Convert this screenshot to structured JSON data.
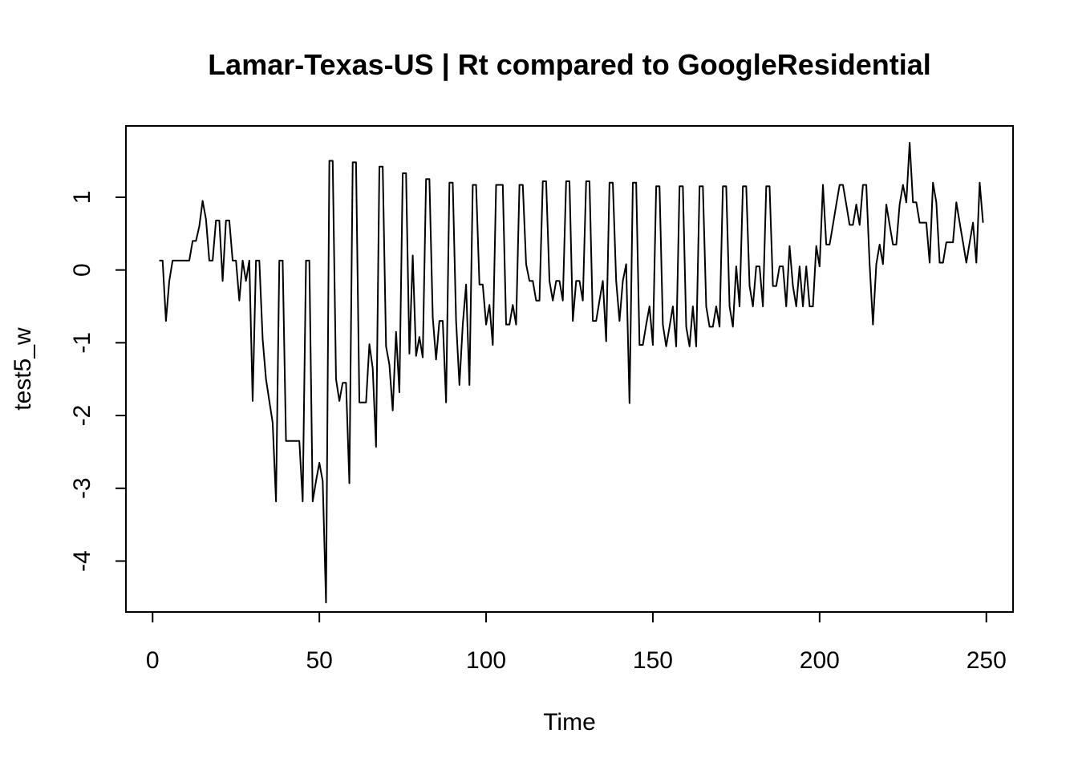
{
  "chart_data": {
    "type": "line",
    "title": "Lamar-Texas-US | Rt compared to GoogleResidential",
    "xlabel": "Time",
    "ylabel": "test5_w",
    "xlim": [
      -8,
      258
    ],
    "ylim": [
      -4.7,
      1.98
    ],
    "xticks": [
      0,
      50,
      100,
      150,
      200,
      250
    ],
    "yticks": [
      -4,
      -3,
      -2,
      -1,
      0,
      1
    ],
    "grid": false,
    "legend": "none",
    "line_color": "#000000",
    "series": [
      {
        "x_start": 2,
        "values": [
          0.13,
          0.13,
          -0.7,
          -0.15,
          0.13,
          0.13,
          0.13,
          0.13,
          0.13,
          0.13,
          0.4,
          0.4,
          0.6,
          0.95,
          0.7,
          0.13,
          0.13,
          0.68,
          0.68,
          -0.15,
          0.68,
          0.68,
          0.13,
          0.13,
          -0.42,
          0.13,
          -0.15,
          0.13,
          -1.8,
          0.13,
          0.13,
          -0.95,
          -1.5,
          -1.8,
          -2.1,
          -3.18,
          0.13,
          0.13,
          -2.35,
          -2.35,
          -2.35,
          -2.35,
          -2.35,
          -3.18,
          0.13,
          0.13,
          -3.18,
          -2.9,
          -2.65,
          -2.9,
          -4.57,
          1.5,
          1.5,
          -1.5,
          -1.8,
          -1.55,
          -1.55,
          -2.93,
          1.48,
          1.48,
          -1.82,
          -1.82,
          -1.82,
          -1.02,
          -1.35,
          -2.43,
          1.42,
          1.42,
          -1.05,
          -1.3,
          -1.93,
          -0.85,
          -1.68,
          1.33,
          1.33,
          -1.15,
          0.2,
          -1.18,
          -0.92,
          -1.2,
          1.25,
          1.25,
          -0.65,
          -1.23,
          -0.7,
          -0.7,
          -1.82,
          1.2,
          1.2,
          -0.7,
          -1.58,
          -0.75,
          -0.2,
          -1.58,
          1.17,
          1.17,
          -0.2,
          -0.2,
          -0.75,
          -0.48,
          -1.03,
          1.17,
          1.17,
          1.17,
          -0.75,
          -0.75,
          -0.48,
          -0.75,
          1.17,
          1.17,
          0.08,
          -0.15,
          -0.15,
          -0.42,
          -0.42,
          1.22,
          1.22,
          -0.15,
          -0.42,
          -0.15,
          -0.15,
          -0.42,
          1.22,
          1.22,
          -0.7,
          -0.15,
          -0.15,
          -0.42,
          1.22,
          1.22,
          -0.7,
          -0.7,
          -0.42,
          -0.15,
          -0.98,
          1.2,
          1.2,
          -0.15,
          -0.7,
          -0.15,
          0.08,
          -1.83,
          1.2,
          1.2,
          -1.03,
          -1.03,
          -0.75,
          -0.5,
          -1.03,
          1.15,
          1.15,
          -0.75,
          -1.05,
          -0.78,
          -0.5,
          -1.05,
          1.15,
          1.15,
          -0.78,
          -1.05,
          -0.5,
          -1.05,
          1.15,
          1.15,
          -0.5,
          -0.78,
          -0.78,
          -0.5,
          -0.78,
          1.15,
          1.15,
          -0.5,
          -0.78,
          0.05,
          -0.5,
          1.15,
          1.15,
          -0.22,
          -0.5,
          0.05,
          0.05,
          -0.5,
          1.15,
          1.15,
          -0.22,
          -0.22,
          0.05,
          0.05,
          -0.5,
          0.33,
          -0.22,
          -0.5,
          0.05,
          -0.5,
          0.05,
          -0.5,
          -0.5,
          0.33,
          0.05,
          1.17,
          0.35,
          0.35,
          0.62,
          0.9,
          1.17,
          1.17,
          0.9,
          0.62,
          0.62,
          0.9,
          0.62,
          1.17,
          1.17,
          0.08,
          -0.75,
          0.08,
          0.35,
          0.08,
          0.9,
          0.62,
          0.35,
          0.35,
          0.9,
          1.17,
          0.93,
          1.75,
          0.93,
          0.93,
          0.65,
          0.65,
          0.65,
          0.1,
          1.2,
          0.93,
          0.1,
          0.1,
          0.38,
          0.38,
          0.38,
          0.93,
          0.65,
          0.38,
          0.1,
          0.38,
          0.65,
          0.1,
          1.2,
          0.65
        ]
      }
    ]
  }
}
